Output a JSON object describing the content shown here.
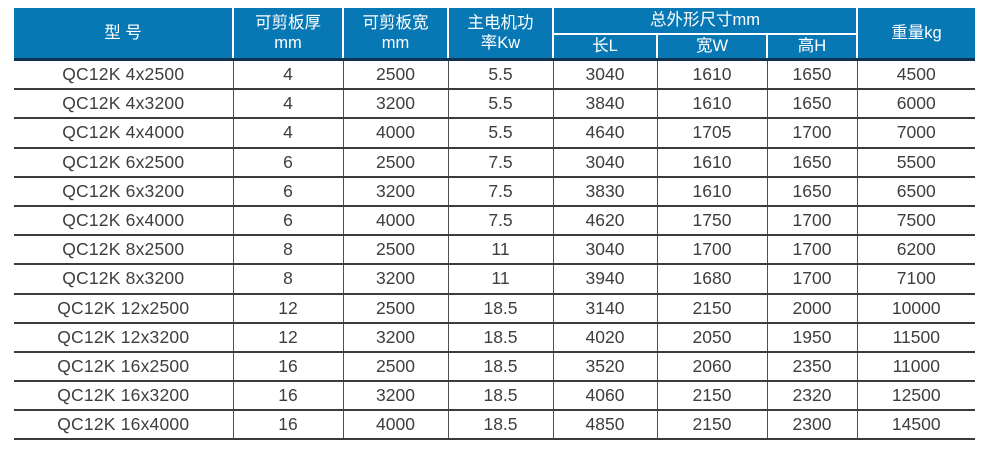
{
  "colors": {
    "header_bg": "#0878b5",
    "header_text": "#ffffff",
    "header_underline": "#0d3350",
    "row_separator": "#3b3b3b",
    "column_separator": "#4f4f4f",
    "body_text": "#3e3e3e",
    "page_bg": "#ffffff"
  },
  "table": {
    "group_header": {
      "label": "总外形尺寸mm"
    },
    "columns": [
      {
        "id": "model",
        "label": "型 号"
      },
      {
        "id": "thickness",
        "label": "可剪板厚\nmm"
      },
      {
        "id": "plate-width",
        "label": "可剪板宽\nmm"
      },
      {
        "id": "power",
        "label": "主电机功\n率Kw"
      },
      {
        "id": "length",
        "label": "长L"
      },
      {
        "id": "width",
        "label": "宽W"
      },
      {
        "id": "height",
        "label": "高H"
      },
      {
        "id": "weight",
        "label": "重量kg"
      }
    ],
    "rows": [
      [
        "QC12K 4x2500",
        "4",
        "2500",
        "5.5",
        "3040",
        "1610",
        "1650",
        "4500"
      ],
      [
        "QC12K 4x3200",
        "4",
        "3200",
        "5.5",
        "3840",
        "1610",
        "1650",
        "6000"
      ],
      [
        "QC12K 4x4000",
        "4",
        "4000",
        "5.5",
        "4640",
        "1705",
        "1700",
        "7000"
      ],
      [
        "QC12K 6x2500",
        "6",
        "2500",
        "7.5",
        "3040",
        "1610",
        "1650",
        "5500"
      ],
      [
        "QC12K 6x3200",
        "6",
        "3200",
        "7.5",
        "3830",
        "1610",
        "1650",
        "6500"
      ],
      [
        "QC12K 6x4000",
        "6",
        "4000",
        "7.5",
        "4620",
        "1750",
        "1700",
        "7500"
      ],
      [
        "QC12K 8x2500",
        "8",
        "2500",
        "11",
        "3040",
        "1700",
        "1700",
        "6200"
      ],
      [
        "QC12K 8x3200",
        "8",
        "3200",
        "11",
        "3940",
        "1680",
        "1700",
        "7100"
      ],
      [
        "QC12K 12x2500",
        "12",
        "2500",
        "18.5",
        "3140",
        "2150",
        "2000",
        "10000"
      ],
      [
        "QC12K 12x3200",
        "12",
        "3200",
        "18.5",
        "4020",
        "2050",
        "1950",
        "11500"
      ],
      [
        "QC12K 16x2500",
        "16",
        "2500",
        "18.5",
        "3520",
        "2060",
        "2350",
        "11000"
      ],
      [
        "QC12K 16x3200",
        "16",
        "3200",
        "18.5",
        "4060",
        "2150",
        "2320",
        "12500"
      ],
      [
        "QC12K 16x4000",
        "16",
        "4000",
        "18.5",
        "4850",
        "2150",
        "2300",
        "14500"
      ]
    ]
  }
}
